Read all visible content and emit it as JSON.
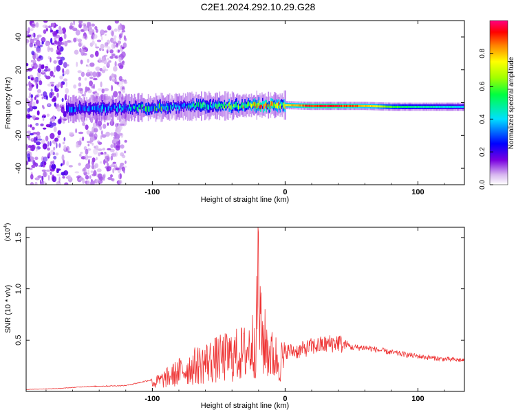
{
  "title": "C2E1.2024.292.10.29.G28",
  "chart_data": [
    {
      "type": "heatmap",
      "xlabel": "Height of straight line (km)",
      "ylabel": "Frequency (Hz)",
      "xlim": [
        -195,
        135
      ],
      "ylim": [
        -50,
        50
      ],
      "xticks": [
        -100,
        0,
        100
      ],
      "yticks": [
        -40,
        -20,
        0,
        20,
        40
      ],
      "colorbar": {
        "label": "Normalized spectral amplitude",
        "range": [
          0,
          1
        ],
        "ticks": [
          0.0,
          0.2,
          0.4,
          0.6,
          0.8
        ],
        "tick_labels": [
          "0.0",
          "0.2",
          "0.4",
          "0.6",
          "0.8"
        ]
      },
      "ridge": {
        "x": [
          -165,
          -140,
          -120,
          -100,
          -80,
          -60,
          -40,
          -20,
          0,
          20,
          40,
          60,
          80,
          100,
          120,
          135
        ],
        "frequency": [
          -4,
          -3.5,
          -3,
          -3,
          -2.5,
          -2,
          -2,
          -1.5,
          -1.5,
          -2,
          -2,
          -2,
          -2.5,
          -2.5,
          -2.5,
          -2.5
        ],
        "amplitude": [
          0.3,
          0.35,
          0.4,
          0.55,
          0.45,
          0.5,
          0.65,
          0.85,
          0.75,
          0.95,
          0.95,
          0.85,
          0.6,
          0.5,
          0.45,
          0.4
        ]
      }
    },
    {
      "type": "line",
      "xlabel": "Height of straight line (km)",
      "ylabel": "SNR (10 * v/v)",
      "y_scale_label": "(x10",
      "y_scale_exp": "4",
      "y_scale_suffix": ")",
      "xlim": [
        -195,
        135
      ],
      "ylim": [
        0,
        1.6
      ],
      "xticks": [
        -100,
        0,
        100
      ],
      "yticks": [
        0.5,
        1.0,
        1.5
      ],
      "ytick_labels": [
        "0.5",
        "1.0",
        "1.5"
      ],
      "color": "#ee3333",
      "envelope": {
        "x": [
          -195,
          -170,
          -150,
          -120,
          -100,
          -90,
          -80,
          -70,
          -60,
          -50,
          -40,
          -30,
          -22,
          -20,
          -18,
          -10,
          0,
          10,
          20,
          30,
          40,
          50,
          60,
          80,
          100,
          120,
          135
        ],
        "y": [
          0.02,
          0.03,
          0.05,
          0.06,
          0.12,
          0.2,
          0.3,
          0.38,
          0.45,
          0.5,
          0.55,
          0.6,
          0.8,
          1.6,
          0.85,
          0.55,
          0.45,
          0.45,
          0.5,
          0.52,
          0.55,
          0.45,
          0.45,
          0.4,
          0.36,
          0.33,
          0.32
        ]
      }
    }
  ]
}
